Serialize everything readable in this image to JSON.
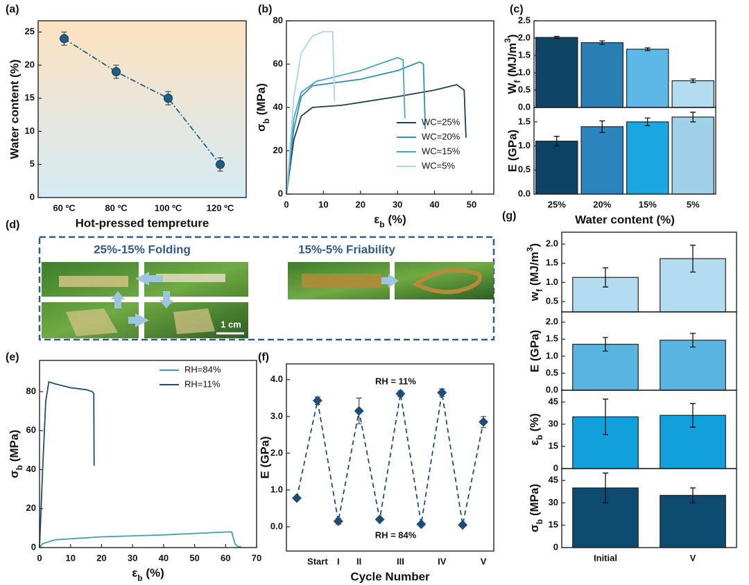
{
  "chart_data": [
    {
      "type": "line",
      "panel_label": "(a)",
      "categories": [
        "60 ºC",
        "80 ºC",
        "100 ºC",
        "120 ºC"
      ],
      "values": [
        24,
        19,
        15,
        5
      ],
      "errors": [
        1,
        1,
        1,
        1
      ],
      "color": "#1f5f85",
      "ylim": [
        0,
        26.7
      ],
      "yticks": [
        0,
        5,
        10,
        15,
        20,
        25
      ],
      "ylabel": "Water content (%)",
      "xlabel": "Hot-pressed tempreture"
    },
    {
      "type": "line",
      "panel_label": "(b)",
      "xlim": [
        0,
        56
      ],
      "xticks": [
        0,
        10,
        20,
        30,
        40,
        50
      ],
      "ylim": [
        0,
        80
      ],
      "yticks": [
        0,
        20,
        40,
        60,
        80
      ],
      "legend": "lower right",
      "ylabel": [
        {
          "text": "σ"
        },
        {
          "text": "b",
          "shift": "sub"
        },
        {
          "text": " (MPa)"
        }
      ],
      "xlabel": [
        {
          "text": "ε"
        },
        {
          "text": "b",
          "shift": "sub"
        },
        {
          "text": " (%)"
        }
      ],
      "series": [
        {
          "name": "WC=25%",
          "color": "#1d3d52",
          "x": [
            0,
            2,
            4,
            7,
            15,
            30,
            40,
            46,
            48,
            48.5
          ],
          "values": [
            0,
            25,
            36,
            40,
            41,
            45,
            48,
            50.5,
            48,
            26
          ]
        },
        {
          "name": "WC=20%",
          "color": "#2f8fb5",
          "x": [
            0,
            2,
            4,
            7,
            20,
            30,
            36,
            37,
            37.5
          ],
          "values": [
            0,
            30,
            45,
            50,
            53,
            57,
            61,
            60,
            30
          ]
        },
        {
          "name": "WC=15%",
          "color": "#45a6c4",
          "x": [
            0,
            2,
            4,
            8,
            20,
            30,
            31.5,
            32
          ],
          "values": [
            0,
            35,
            47,
            52,
            57,
            63,
            62,
            35
          ]
        },
        {
          "name": "WC=5%",
          "color": "#a8d8e8",
          "x": [
            0,
            2,
            4,
            7,
            10,
            12.5,
            13
          ],
          "values": [
            0,
            45,
            65,
            73,
            75,
            75,
            43
          ]
        }
      ]
    },
    {
      "type": "bar",
      "panel_label": "(c)",
      "values": [
        2.02,
        1.87,
        1.68,
        0.77
      ],
      "errors": [
        0.03,
        0.05,
        0.04,
        0.05
      ],
      "colors": [
        "#0e4566",
        "#2a7fb2",
        "#5cb8e6",
        "#b2dcef"
      ],
      "ylim": [
        0,
        2.5
      ],
      "yticks": [
        {
          "value": 0,
          "label": "0.0"
        },
        0.5,
        {
          "value": 1,
          "label": "1.0"
        },
        1.5,
        {
          "value": 2,
          "label": "2.0"
        },
        2.5
      ],
      "ylabel": [
        {
          "text": "W"
        },
        {
          "text": "f",
          "shift": "sub"
        },
        {
          "text": " (MJ/m"
        },
        {
          "text": "3",
          "shift": "super"
        },
        {
          "text": ")"
        }
      ]
    },
    {
      "type": "bar",
      "categories": [
        "25%",
        "20%",
        "15%",
        "5%"
      ],
      "values": [
        1.1,
        1.4,
        1.5,
        1.6
      ],
      "errors": [
        0.1,
        0.12,
        0.08,
        0.1
      ],
      "colors": [
        "#0c4364",
        "#2c86bd",
        "#1aa6de",
        "#9fd2e8"
      ],
      "ylim": [
        0,
        1.8
      ],
      "yticks": [
        {
          "value": 0,
          "label": "0.0"
        },
        0.5,
        {
          "value": 1,
          "label": "1.0"
        },
        1.5
      ],
      "ylabel": "E (GPa)",
      "xlabel": "Water content (%)"
    },
    {
      "type": "line",
      "panel_label": "(e)",
      "xlim": [
        0,
        70
      ],
      "xticks": [
        0,
        10,
        20,
        30,
        40,
        50,
        60,
        70
      ],
      "ylim": [
        0,
        96
      ],
      "yticks": [
        0,
        20,
        40,
        60,
        80
      ],
      "legend": "upper right",
      "ylabel": [
        {
          "text": "σ"
        },
        {
          "text": "b",
          "shift": "sub"
        },
        {
          "text": " (MPa)"
        }
      ],
      "xlabel": [
        {
          "text": "ε"
        },
        {
          "text": "b",
          "shift": "sub"
        },
        {
          "text": " (%)"
        }
      ],
      "series": [
        {
          "name": "RH=84%",
          "color": "#3a9fb2",
          "x": [
            0,
            1,
            5,
            20,
            40,
            60,
            62,
            63,
            64,
            65
          ],
          "values": [
            0,
            2,
            4,
            5.5,
            6.5,
            8,
            8,
            2,
            0.5,
            0.5
          ]
        },
        {
          "name": "RH=11%",
          "color": "#1d4e6b",
          "x": [
            0,
            1,
            2,
            3,
            5,
            10,
            15,
            17,
            17.5,
            17.6
          ],
          "values": [
            0,
            40,
            75,
            85,
            84,
            82,
            81,
            80,
            79,
            42
          ]
        }
      ]
    },
    {
      "type": "line",
      "panel_label": "(f)",
      "categories": [
        null,
        "Start",
        "I",
        "II",
        null,
        "III",
        null,
        "IV",
        null,
        "V"
      ],
      "values": [
        0.78,
        3.43,
        0.15,
        3.15,
        0.2,
        3.62,
        0.07,
        3.65,
        0.05,
        2.85
      ],
      "errors": [
        0.05,
        0.1,
        0.08,
        0.35,
        0.05,
        0.08,
        0.05,
        0.1,
        0.05,
        0.15
      ],
      "color": "#1e4d78",
      "ylim": [
        -0.66,
        4.43
      ],
      "yticks": [
        {
          "value": 0,
          "label": "0.0"
        },
        {
          "value": 1,
          "label": "1.0"
        },
        {
          "value": 2,
          "label": "2.0"
        },
        {
          "value": 3,
          "label": "3.0"
        },
        {
          "value": 4,
          "label": "4.0"
        }
      ],
      "annotations": [
        "RH = 11%",
        "RH = 84%"
      ],
      "ylabel": "E (GPa)",
      "xlabel": "Cycle Number"
    },
    {
      "type": "bar",
      "panel_label": "(g)",
      "values": [
        1.13,
        1.62
      ],
      "errors": [
        0.25,
        0.35
      ],
      "colors": [
        "#b3dcf0",
        "#b3dcf0"
      ],
      "ylim": [
        0.23,
        2.31
      ],
      "yticks": [
        0.5,
        {
          "value": 1,
          "label": "1.0"
        },
        1.5,
        {
          "value": 2,
          "label": "2.0"
        }
      ],
      "ylabel": [
        {
          "text": "w"
        },
        {
          "text": "f",
          "shift": "sub"
        },
        {
          "text": " (MJ/m"
        },
        {
          "text": "3",
          "shift": "super"
        },
        {
          "text": ")"
        }
      ]
    },
    {
      "type": "bar",
      "values": [
        1.35,
        1.47
      ],
      "errors": [
        0.2,
        0.2
      ],
      "colors": [
        "#5ab4e0",
        "#5ab4e0"
      ],
      "ylim": [
        0,
        2.3
      ],
      "yticks": [
        {
          "value": 0,
          "label": "0.0"
        },
        0.5,
        {
          "value": 1,
          "label": "1.0"
        },
        1.5,
        {
          "value": 2,
          "label": "2.0"
        }
      ],
      "ylabel": "E (GPa)"
    },
    {
      "type": "bar",
      "values": [
        35,
        36
      ],
      "errors": [
        12,
        8
      ],
      "colors": [
        "#12a0dc",
        "#12a0dc"
      ],
      "ylim": [
        0,
        53
      ],
      "yticks": [
        0,
        15,
        30,
        45
      ],
      "ylabel": [
        {
          "text": "ε"
        },
        {
          "text": "b",
          "shift": "sub"
        },
        {
          "text": " (%)"
        }
      ]
    },
    {
      "type": "bar",
      "categories": [
        "Initial",
        "V"
      ],
      "values": [
        40,
        35
      ],
      "errors": [
        10,
        5
      ],
      "colors": [
        "#0d4a70",
        "#0d4a70"
      ],
      "ylim": [
        0,
        53
      ],
      "yticks": [
        0,
        15,
        30,
        45
      ],
      "ylabel": [
        {
          "text": "σ"
        },
        {
          "text": "b",
          "shift": "sub"
        },
        {
          "text": " (MPa)"
        }
      ]
    }
  ],
  "photo_panel": {
    "panel_label": "(d)",
    "left_title": "25%-15% Folding",
    "right_title": "15%-5% Friability",
    "scale_bar": "1 cm"
  }
}
